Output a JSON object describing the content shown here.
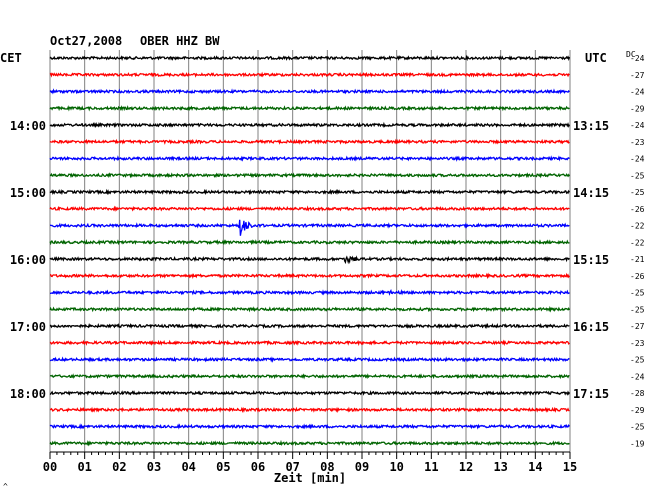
{
  "header": {
    "date": "Oct27,2008",
    "station": "OBER HHZ BW",
    "left_tz": "CET",
    "right_tz": "UTC",
    "dc_label": "DC"
  },
  "chart_data": {
    "type": "line",
    "title": "Oct27,2008 OBER HHZ BW",
    "xlabel": "Zeit [min]",
    "x_ticks": [
      "00",
      "01",
      "02",
      "03",
      "04",
      "05",
      "06",
      "07",
      "08",
      "09",
      "10",
      "11",
      "12",
      "13",
      "14",
      "15"
    ],
    "xlim": [
      0,
      15
    ],
    "trace_count": 24,
    "trace_colors": [
      "#000000",
      "#ff0000",
      "#0000ff",
      "#006400"
    ],
    "left_hour_labels": [
      {
        "trace": 4,
        "text": "14:00"
      },
      {
        "trace": 8,
        "text": "15:00"
      },
      {
        "trace": 12,
        "text": "16:00"
      },
      {
        "trace": 16,
        "text": "17:00"
      },
      {
        "trace": 20,
        "text": "18:00"
      }
    ],
    "right_hour_labels": [
      {
        "trace": 4,
        "text": "13:15"
      },
      {
        "trace": 8,
        "text": "14:15"
      },
      {
        "trace": 12,
        "text": "15:15"
      },
      {
        "trace": 16,
        "text": "16:15"
      },
      {
        "trace": 20,
        "text": "17:15"
      }
    ],
    "dc_offsets": [
      "-24",
      "-27",
      "-24",
      "-29",
      "-24",
      "-23",
      "-24",
      "-25",
      "-25",
      "-26",
      "-22",
      "-22",
      "-21",
      "-26",
      "-25",
      "-25",
      "-27",
      "-23",
      "-25",
      "-24",
      "-28",
      "-29",
      "-25",
      "-19"
    ],
    "events": [
      {
        "trace": 10,
        "minute": 5.5,
        "amplitude": "large"
      },
      {
        "trace": 12,
        "minute": 8.5,
        "amplitude": "medium"
      },
      {
        "trace": 14,
        "minute": 9.6,
        "amplitude": "small"
      }
    ],
    "grid": true
  },
  "footer_mark": "^"
}
